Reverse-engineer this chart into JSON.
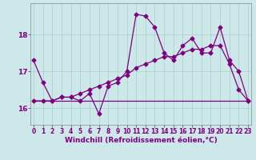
{
  "title": "",
  "xlabel": "Windchill (Refroidissement éolien,°C)",
  "bg_color": "#cce8e8",
  "line_color": "#800080",
  "grid_color": "#aacccc",
  "x_ticks": [
    0,
    1,
    2,
    3,
    4,
    5,
    6,
    7,
    8,
    9,
    10,
    11,
    12,
    13,
    14,
    15,
    16,
    17,
    18,
    19,
    20,
    21,
    22,
    23
  ],
  "y_ticks": [
    16,
    17,
    18
  ],
  "ylim": [
    15.55,
    18.85
  ],
  "xlim": [
    -0.3,
    23.3
  ],
  "line1_x": [
    0,
    1,
    2,
    3,
    4,
    5,
    6,
    7,
    8,
    9,
    10,
    11,
    12,
    13,
    14,
    15,
    16,
    17,
    18,
    19,
    20,
    21,
    22,
    23
  ],
  "line1_y": [
    17.3,
    16.7,
    16.2,
    16.3,
    16.3,
    16.2,
    16.4,
    15.85,
    16.6,
    16.7,
    17.0,
    18.55,
    18.5,
    18.2,
    17.5,
    17.3,
    17.7,
    17.9,
    17.5,
    17.5,
    18.2,
    17.3,
    17.0,
    16.2
  ],
  "line2_x": [
    0,
    9,
    20,
    23
  ],
  "line2_y": [
    16.2,
    16.2,
    16.2,
    16.2
  ],
  "line3_x": [
    0,
    1,
    2,
    3,
    4,
    5,
    6,
    7,
    8,
    9,
    10,
    11,
    12,
    13,
    14,
    15,
    16,
    17,
    18,
    19,
    20,
    21,
    22,
    23
  ],
  "line3_y": [
    16.2,
    16.2,
    16.2,
    16.3,
    16.3,
    16.4,
    16.5,
    16.6,
    16.7,
    16.8,
    16.9,
    17.1,
    17.2,
    17.3,
    17.4,
    17.4,
    17.5,
    17.6,
    17.6,
    17.7,
    17.7,
    17.2,
    16.5,
    16.2
  ],
  "marker": "D",
  "markersize": 2.5,
  "linewidth": 0.9,
  "tick_fontsize": 5.5,
  "xlabel_fontsize": 6.5,
  "xlabel_fontweight": "bold"
}
